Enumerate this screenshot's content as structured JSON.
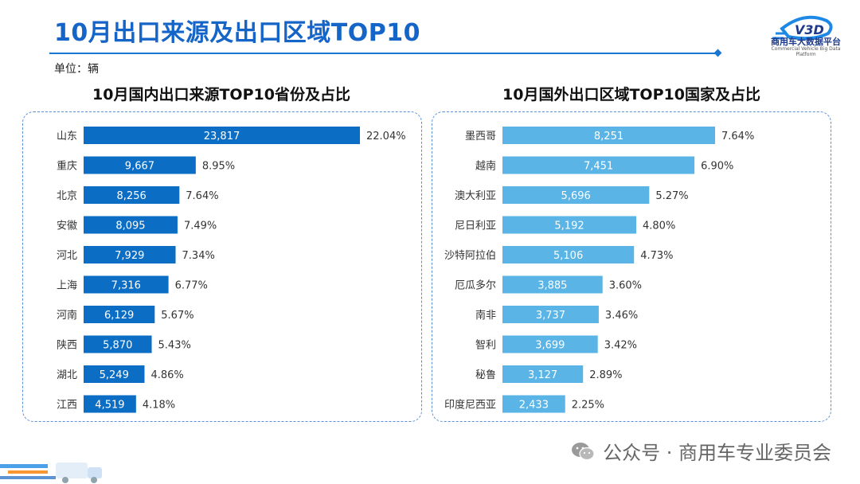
{
  "header": {
    "title": "10月出口来源及出口区域TOP10",
    "logo_text": "商用车大数据平台",
    "logo_sub": "Commercial Vehicle Big Data Platform",
    "logo_mark": "V3D"
  },
  "unit_label": "单位：辆",
  "footer": {
    "text": "公众号 · 商用车专业委员会"
  },
  "colors": {
    "title": "#1565c8",
    "domestic_bar": "#0b6dc4",
    "foreign_bar": "#5ab4e6"
  },
  "chart_data": [
    {
      "type": "bar",
      "orientation": "horizontal",
      "title": "10月国内出口来源TOP10省份及占比",
      "categories": [
        "山东",
        "重庆",
        "北京",
        "安徽",
        "河北",
        "上海",
        "河南",
        "陕西",
        "湖北",
        "江西"
      ],
      "values": [
        23817,
        9667,
        8256,
        8095,
        7929,
        7316,
        6129,
        5870,
        5249,
        4519
      ],
      "value_labels": [
        "23,817",
        "9,667",
        "8,256",
        "8,095",
        "7,929",
        "7,316",
        "6,129",
        "5,870",
        "5,249",
        "4,519"
      ],
      "percents": [
        "22.04%",
        "8.95%",
        "7.64%",
        "7.49%",
        "7.34%",
        "6.77%",
        "5.67%",
        "5.43%",
        "4.86%",
        "4.18%"
      ],
      "xlim": [
        0,
        23817
      ]
    },
    {
      "type": "bar",
      "orientation": "horizontal",
      "title": "10月国外出口区域TOP10国家及占比",
      "categories": [
        "墨西哥",
        "越南",
        "澳大利亚",
        "尼日利亚",
        "沙特阿拉伯",
        "厄瓜多尔",
        "南非",
        "智利",
        "秘鲁",
        "印度尼西亚"
      ],
      "values": [
        8251,
        7451,
        5696,
        5192,
        5106,
        3885,
        3737,
        3699,
        3127,
        2433
      ],
      "value_labels": [
        "8,251",
        "7,451",
        "5,696",
        "5,192",
        "5,106",
        "3,885",
        "3,737",
        "3,699",
        "3,127",
        "2,433"
      ],
      "percents": [
        "7.64%",
        "6.90%",
        "5.27%",
        "4.80%",
        "4.73%",
        "3.60%",
        "3.46%",
        "3.42%",
        "2.89%",
        "2.25%"
      ],
      "xlim": [
        0,
        8251
      ]
    }
  ]
}
